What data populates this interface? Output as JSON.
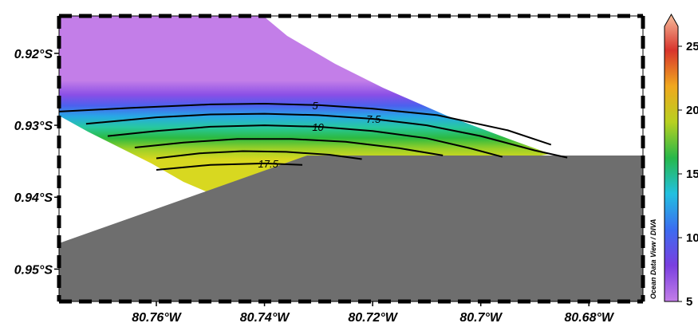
{
  "chart_data": {
    "type": "heatmap",
    "title": "",
    "xlabel": "",
    "ylabel": "",
    "x_ticks": [
      "80.76°W",
      "80.74°W",
      "80.72°W",
      "80.7°W",
      "80.68°W"
    ],
    "x_tick_values": [
      -80.76,
      -80.74,
      -80.72,
      -80.7,
      -80.68
    ],
    "y_ticks": [
      "0.92°S",
      "0.93°S",
      "0.94°S",
      "0.95°S"
    ],
    "y_tick_values": [
      -0.92,
      -0.93,
      -0.94,
      -0.95
    ],
    "xlim": [
      -80.778,
      -80.67
    ],
    "ylim": [
      -0.9545,
      -0.9148
    ],
    "land_color": "#6e6e6e",
    "colorbar": {
      "ticks": [
        "5",
        "10",
        "15",
        "20",
        "25"
      ],
      "tick_values": [
        5,
        10,
        15,
        20,
        25
      ],
      "range": [
        5,
        27.5
      ],
      "colors": [
        "#c37ee8",
        "#7a3fe0",
        "#3c6cf0",
        "#22c0e0",
        "#27b84a",
        "#b8d020",
        "#f0a81e",
        "#d8342c",
        "#f7bf9d"
      ]
    },
    "contours": [
      {
        "level": 5,
        "label": "5",
        "points": [
          [
            -80.778,
            -0.9281
          ],
          [
            -80.765,
            -0.9276
          ],
          [
            -80.75,
            -0.9271
          ],
          [
            -80.74,
            -0.927
          ],
          [
            -80.73,
            -0.9272
          ],
          [
            -80.72,
            -0.9277
          ],
          [
            -80.708,
            -0.9286
          ],
          [
            -80.695,
            -0.9307
          ],
          [
            -80.687,
            -0.9327
          ]
        ]
      },
      {
        "level": 7.5,
        "label": "7.5",
        "points": [
          [
            -80.773,
            -0.9298
          ],
          [
            -80.76,
            -0.9289
          ],
          [
            -80.75,
            -0.9285
          ],
          [
            -80.74,
            -0.9284
          ],
          [
            -80.73,
            -0.9286
          ],
          [
            -80.72,
            -0.9291
          ],
          [
            -80.71,
            -0.93
          ],
          [
            -80.7,
            -0.9315
          ],
          [
            -80.69,
            -0.9335
          ],
          [
            -80.684,
            -0.9345
          ]
        ]
      },
      {
        "level": 10,
        "label": "10",
        "points": [
          [
            -80.769,
            -0.9315
          ],
          [
            -80.76,
            -0.9308
          ],
          [
            -80.75,
            -0.9302
          ],
          [
            -80.74,
            -0.93
          ],
          [
            -80.73,
            -0.9302
          ],
          [
            -80.72,
            -0.9308
          ],
          [
            -80.71,
            -0.9318
          ],
          [
            -80.702,
            -0.9332
          ],
          [
            -80.696,
            -0.9344
          ]
        ]
      },
      {
        "level": 12.5,
        "label": "",
        "points": [
          [
            -80.764,
            -0.9331
          ],
          [
            -80.755,
            -0.9324
          ],
          [
            -80.745,
            -0.9319
          ],
          [
            -80.735,
            -0.9319
          ],
          [
            -80.725,
            -0.9323
          ],
          [
            -80.715,
            -0.9332
          ],
          [
            -80.707,
            -0.9342
          ]
        ]
      },
      {
        "level": 15,
        "label": "",
        "points": [
          [
            -80.76,
            -0.9346
          ],
          [
            -80.752,
            -0.9339
          ],
          [
            -80.744,
            -0.9336
          ],
          [
            -80.736,
            -0.9337
          ],
          [
            -80.728,
            -0.9341
          ],
          [
            -80.722,
            -0.9347
          ]
        ]
      },
      {
        "level": 17.5,
        "label": "17.5",
        "points": [
          [
            -80.76,
            -0.9362
          ],
          [
            -80.75,
            -0.9355
          ],
          [
            -80.74,
            -0.9353
          ],
          [
            -80.733,
            -0.9355
          ]
        ]
      }
    ],
    "contour_ticks": [
      "5",
      "7.5",
      "10",
      "17.5"
    ],
    "credit": "Ocean Data View / DIVA"
  }
}
